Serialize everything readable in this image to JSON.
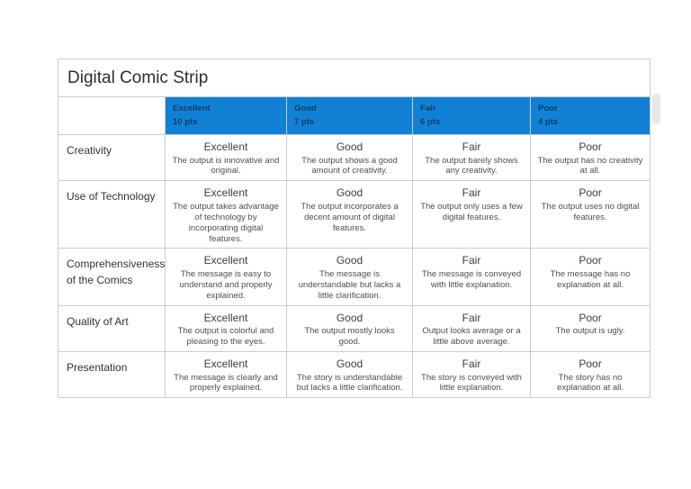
{
  "title": "Digital Comic Strip",
  "colors": {
    "header_bg": "#1181d6",
    "header_text": "#0e3d63",
    "border": "#cbcbcb",
    "title_text": "#2e2e2e",
    "heading_text": "#3d3d3d",
    "desc_text": "#4e4e4e",
    "criterion_text": "#333333"
  },
  "header": {
    "columns": [
      {
        "label": "Excellent",
        "points": "10 pts"
      },
      {
        "label": "Good",
        "points": "7 pts"
      },
      {
        "label": "Fair",
        "points": "6 pts"
      },
      {
        "label": "Poor",
        "points": "4 pts"
      }
    ]
  },
  "rows": [
    {
      "criterion": "Creativity",
      "cells": [
        {
          "heading": "Excellent",
          "description": "The output is innovative and original."
        },
        {
          "heading": "Good",
          "description": "The output shows a good amount of creativity."
        },
        {
          "heading": "Fair",
          "description": "The output barely shows any creativity."
        },
        {
          "heading": "Poor",
          "description": "The output has no creativity at all."
        }
      ]
    },
    {
      "criterion": "Use of Technology",
      "cells": [
        {
          "heading": "Excellent",
          "description": "The output takes advantage of technology by incorporating digital features."
        },
        {
          "heading": "Good",
          "description": "The output incorporates a decent amount of digital features."
        },
        {
          "heading": "Fair",
          "description": "The output only uses a few digital features."
        },
        {
          "heading": "Poor",
          "description": "The output uses no digital features."
        }
      ]
    },
    {
      "criterion": "Comprehensiveness of the Comics",
      "cells": [
        {
          "heading": "Excellent",
          "description": "The message is easy to understand and properly explained."
        },
        {
          "heading": "Good",
          "description": "The message is understandable but lacks a little clarification."
        },
        {
          "heading": "Fair",
          "description": "The message is conveyed with little explanation."
        },
        {
          "heading": "Poor",
          "description": "The message has no explanation at all."
        }
      ]
    },
    {
      "criterion": "Quality of Art",
      "cells": [
        {
          "heading": "Excellent",
          "description": "The output is colorful and pleasing to the eyes."
        },
        {
          "heading": "Good",
          "description": "The output mostly looks good."
        },
        {
          "heading": "Fair",
          "description": "Output looks average or a little above average."
        },
        {
          "heading": "Poor",
          "description": "The output is ugly."
        }
      ]
    },
    {
      "criterion": "Presentation",
      "cells": [
        {
          "heading": "Excellent",
          "description": "The message is clearly and properly explained."
        },
        {
          "heading": "Good",
          "description": "The story is understandable but lacks a little clarification."
        },
        {
          "heading": "Fair",
          "description": "The story is conveyed with little explanation."
        },
        {
          "heading": "Poor",
          "description": "The story has no explanation at all."
        }
      ]
    }
  ]
}
